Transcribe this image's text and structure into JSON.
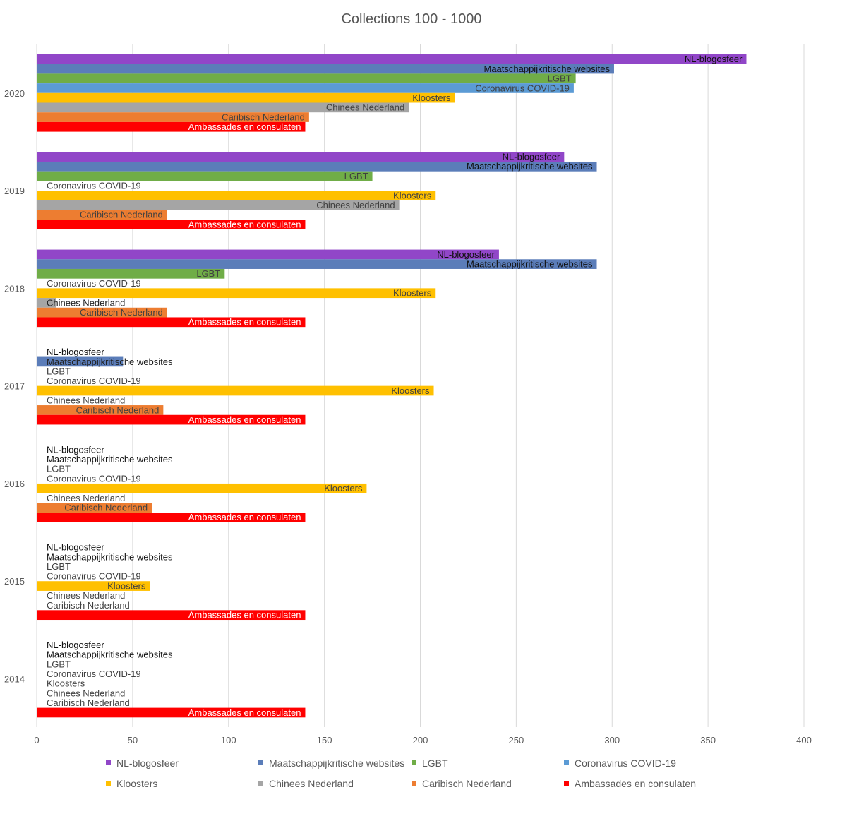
{
  "chart_data": {
    "type": "bar",
    "orientation": "horizontal",
    "title": "Collections 100 - 1000",
    "xlabel": "",
    "ylabel": "",
    "xlim": [
      0,
      400
    ],
    "xticks": [
      0,
      50,
      100,
      150,
      200,
      250,
      300,
      350,
      400
    ],
    "grid": "vertical",
    "legend_position": "bottom",
    "data_labels": "series-name",
    "categories": [
      "2020",
      "2019",
      "2018",
      "2017",
      "2016",
      "2015",
      "2014"
    ],
    "series": [
      {
        "name": "NL-blogosfeer",
        "color": "#9146C8",
        "values": [
          370,
          275,
          241,
          0,
          0,
          0,
          0
        ]
      },
      {
        "name": "Maatschappijkritische websites",
        "color": "#5B7DB9",
        "values": [
          301,
          292,
          292,
          45,
          0,
          0,
          0
        ]
      },
      {
        "name": "LGBT",
        "color": "#70AD47",
        "values": [
          281,
          175,
          98,
          0,
          0,
          0,
          0
        ]
      },
      {
        "name": "Coronavirus COVID-19",
        "color": "#5B9BD5",
        "values": [
          280,
          0,
          0,
          0,
          0,
          0,
          0
        ]
      },
      {
        "name": "Kloosters",
        "color": "#FFC000",
        "values": [
          218,
          208,
          208,
          207,
          172,
          59,
          0
        ]
      },
      {
        "name": "Chinees Nederland",
        "color": "#A5A5A5",
        "values": [
          194,
          189,
          10,
          0,
          0,
          0,
          0
        ]
      },
      {
        "name": "Caribisch Nederland",
        "color": "#ED7D31",
        "values": [
          142,
          68,
          68,
          66,
          60,
          0,
          0
        ]
      },
      {
        "name": "Ambassades en consulaten",
        "color": "#FF0000",
        "values": [
          140,
          140,
          140,
          140,
          140,
          140,
          140
        ]
      }
    ]
  }
}
